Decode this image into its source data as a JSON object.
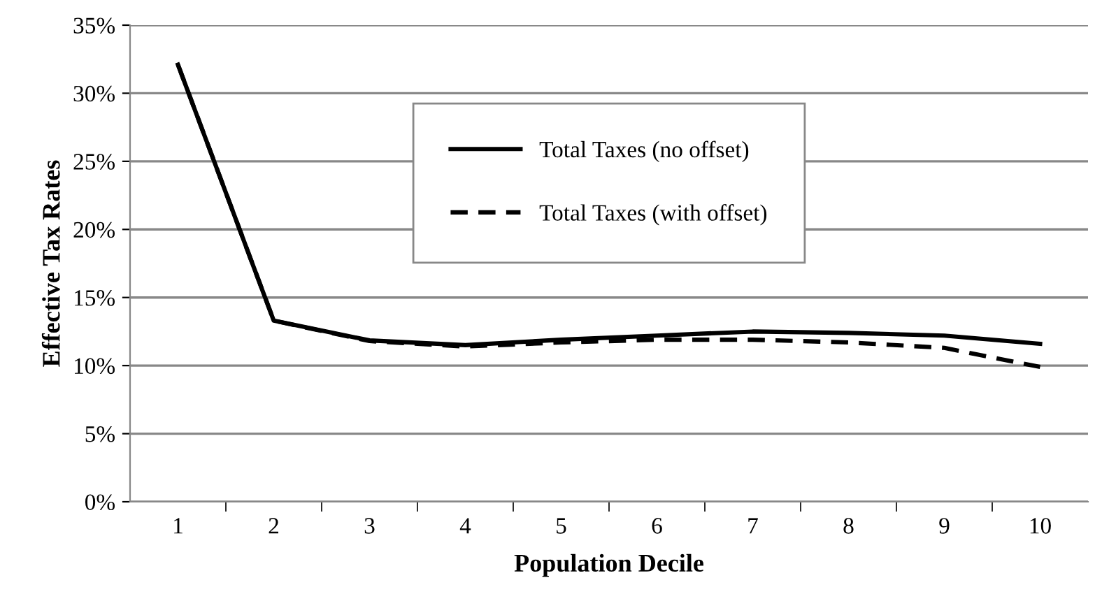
{
  "chart_data": {
    "type": "line",
    "xlabel": "Population Decile",
    "ylabel": "Effective Tax Rates",
    "categories": [
      "1",
      "2",
      "3",
      "4",
      "5",
      "6",
      "7",
      "8",
      "9",
      "10"
    ],
    "series": [
      {
        "name": "Total Taxes (no offset)",
        "color": "#000000",
        "line_style": "solid",
        "values": [
          32.1,
          13.3,
          11.85,
          11.5,
          11.9,
          12.2,
          12.5,
          12.4,
          12.2,
          11.6
        ]
      },
      {
        "name": "Total Taxes (with offset)",
        "color": "#000000",
        "line_style": "dashed",
        "values": [
          32.1,
          13.3,
          11.8,
          11.4,
          11.7,
          11.9,
          11.9,
          11.7,
          11.3,
          9.9
        ]
      }
    ],
    "ylim": [
      0,
      35
    ],
    "yticks": [
      {
        "value": 0,
        "label": "0%"
      },
      {
        "value": 5,
        "label": "5%"
      },
      {
        "value": 10,
        "label": "10%"
      },
      {
        "value": 15,
        "label": "15%"
      },
      {
        "value": 20,
        "label": "20%"
      },
      {
        "value": 25,
        "label": "25%"
      },
      {
        "value": 30,
        "label": "30%"
      },
      {
        "value": 35,
        "label": "35%"
      }
    ],
    "grid": "y",
    "legend": "top",
    "marker": "none"
  }
}
